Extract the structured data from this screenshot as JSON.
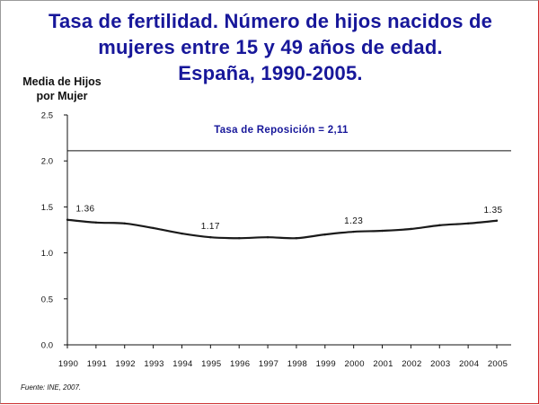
{
  "chart_data": {
    "type": "line",
    "title_lines": [
      "Tasa de fertilidad. Número de hijos nacidos de",
      "mujeres entre 15 y 49 años de edad.",
      "España, 1990-2005."
    ],
    "ylabel_lines": [
      "Media de Hijos",
      "por Mujer"
    ],
    "y_ticks": [
      "0.0",
      "0.5",
      "1.0",
      "1.5",
      "2.0",
      "2.5"
    ],
    "ylim": [
      0,
      2.5
    ],
    "x": [
      "1990",
      "1991",
      "1992",
      "1993",
      "1994",
      "1995",
      "1996",
      "1997",
      "1998",
      "1999",
      "2000",
      "2001",
      "2002",
      "2003",
      "2004",
      "2005"
    ],
    "series": [
      {
        "values": [
          1.36,
          1.33,
          1.32,
          1.27,
          1.21,
          1.17,
          1.16,
          1.17,
          1.16,
          1.2,
          1.23,
          1.24,
          1.26,
          1.3,
          1.32,
          1.35
        ]
      }
    ],
    "data_labels": [
      {
        "x": "1990",
        "text": "1.36"
      },
      {
        "x": "1995",
        "text": "1.17"
      },
      {
        "x": "2000",
        "text": "1.23"
      },
      {
        "x": "2005",
        "text": "1.35"
      }
    ],
    "reference_line": {
      "value": 2.11,
      "label": "Tasa de Reposición = 2,11"
    },
    "grid": false,
    "source": "Fuente: INE, 2007."
  },
  "colors": {
    "title": "#17179a",
    "line": "#1a1a1a",
    "axis": "#111111",
    "border_accent": "#cc2b2b"
  }
}
